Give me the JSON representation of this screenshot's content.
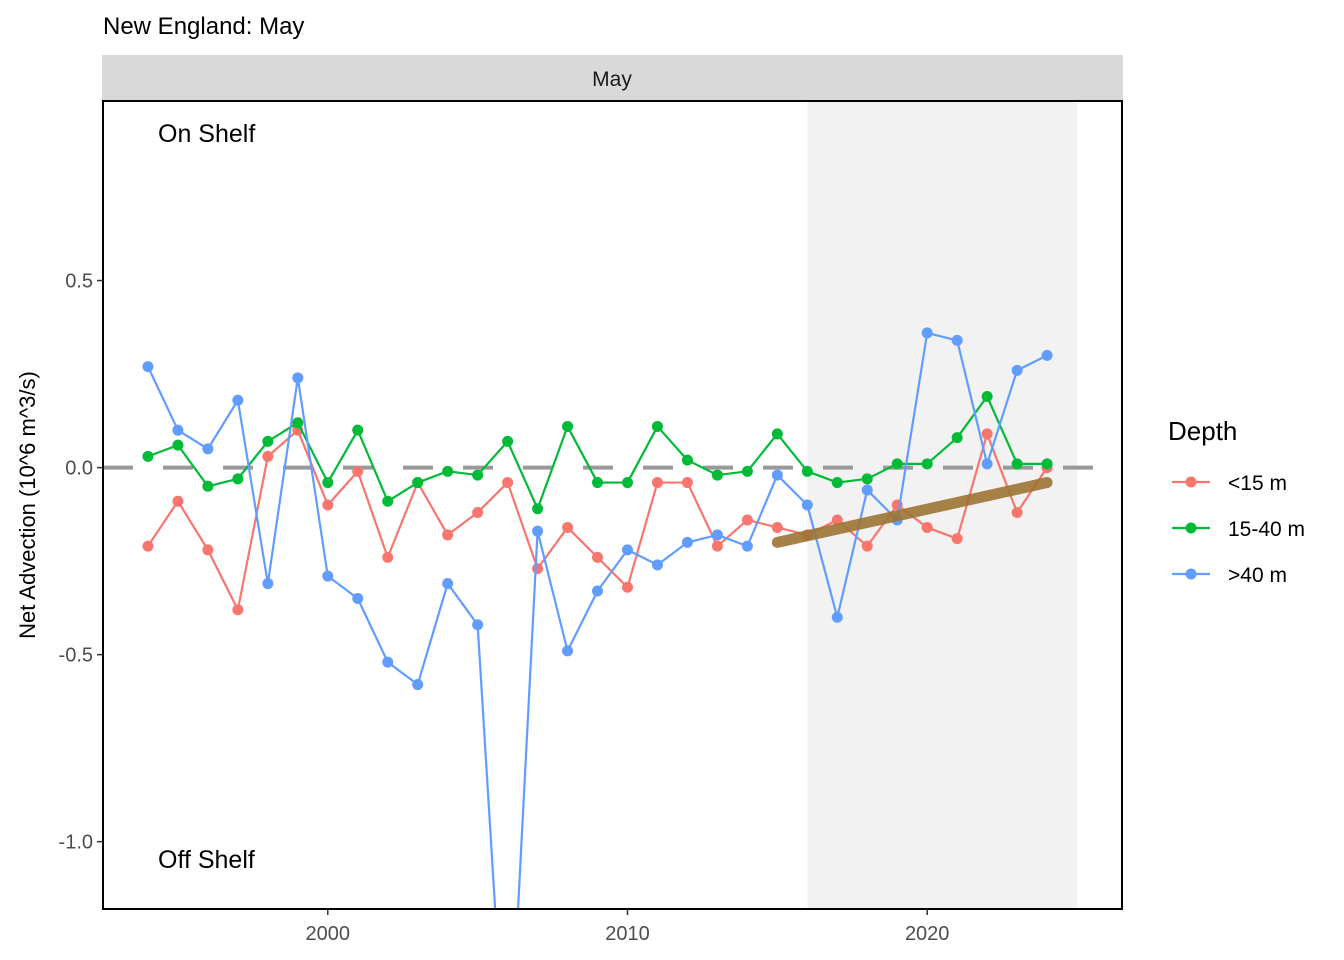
{
  "chart_data": {
    "type": "line",
    "title": "New England: May",
    "facet_label": "May",
    "xlabel": "",
    "ylabel": "Net Advection (10^6 m^3/s)",
    "xlim": [
      1992.5,
      2026.5
    ],
    "ylim": [
      -1.18,
      0.98
    ],
    "x_ticks": [
      2000,
      2010,
      2020
    ],
    "y_ticks": [
      0.5,
      0.0,
      -0.5,
      -1.0
    ],
    "y_tick_labels": [
      "0.5",
      "0.0",
      "-0.5",
      "-1.0"
    ],
    "grid": false,
    "legend": {
      "title": "Depth",
      "placement": "right"
    },
    "annotations": {
      "top": "On Shelf",
      "bottom": "Off Shelf"
    },
    "reference_line": {
      "y": 0,
      "style": "dashed",
      "color": "#999999"
    },
    "highlight_region": {
      "x": [
        2016,
        2025
      ],
      "color": "#f2f2f2"
    },
    "trend_line": {
      "x": [
        2015,
        2024
      ],
      "y": [
        -0.2,
        -0.04
      ],
      "color": "#9c7434"
    },
    "x": [
      1994,
      1995,
      1996,
      1997,
      1998,
      1999,
      2000,
      2001,
      2002,
      2003,
      2004,
      2005,
      2006,
      2007,
      2008,
      2009,
      2010,
      2011,
      2012,
      2013,
      2014,
      2015,
      2016,
      2017,
      2018,
      2019,
      2020,
      2021,
      2022,
      2023,
      2024
    ],
    "series": [
      {
        "name": "<15 m",
        "color": "#F8766D",
        "values": [
          -0.21,
          -0.09,
          -0.22,
          -0.38,
          0.03,
          0.1,
          -0.1,
          -0.01,
          -0.24,
          -0.04,
          -0.18,
          -0.12,
          -0.04,
          -0.27,
          -0.16,
          -0.24,
          -0.32,
          -0.04,
          -0.04,
          -0.21,
          -0.14,
          -0.16,
          -0.18,
          -0.14,
          -0.21,
          -0.1,
          -0.16,
          -0.19,
          0.09,
          -0.12,
          0.0
        ]
      },
      {
        "name": "15-40 m",
        "color": "#00BA38",
        "values": [
          0.03,
          0.06,
          -0.05,
          -0.03,
          0.07,
          0.12,
          -0.04,
          0.1,
          -0.09,
          -0.04,
          -0.01,
          -0.02,
          0.07,
          -0.11,
          0.11,
          -0.04,
          -0.04,
          0.11,
          0.02,
          -0.02,
          -0.01,
          0.09,
          -0.01,
          -0.04,
          -0.03,
          0.01,
          0.01,
          0.08,
          0.19,
          0.01,
          0.01
        ]
      },
      {
        "name": ">40 m",
        "color": "#619CFF",
        "values": [
          0.27,
          0.1,
          0.05,
          0.18,
          -0.31,
          0.24,
          -0.29,
          -0.35,
          -0.52,
          -0.58,
          -0.31,
          -0.42,
          -1.72,
          -0.17,
          -0.49,
          -0.33,
          -0.22,
          -0.26,
          -0.2,
          -0.18,
          -0.21,
          -0.02,
          -0.1,
          -0.4,
          -0.06,
          -0.14,
          0.36,
          0.34,
          0.01,
          0.26,
          0.3
        ]
      }
    ]
  }
}
